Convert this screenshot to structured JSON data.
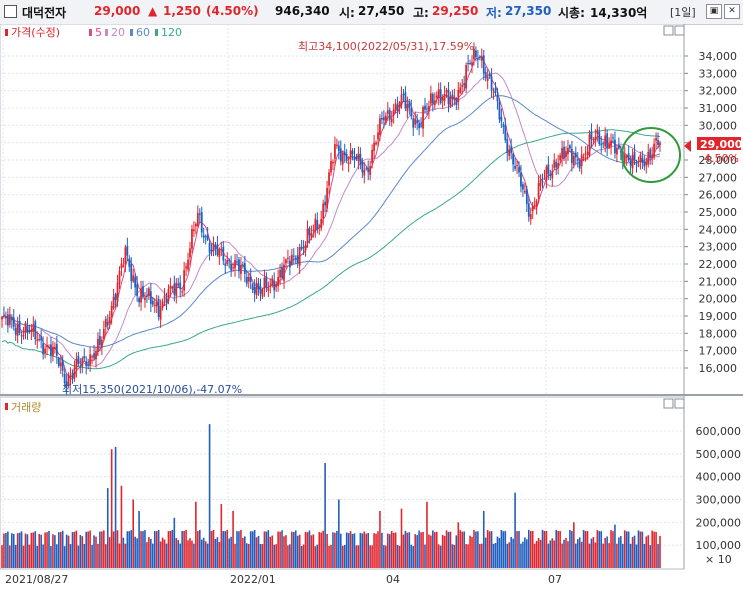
{
  "header": {
    "name": "대덕전자",
    "price": "29,000",
    "change_arrow": "▲",
    "change": "1,250",
    "change_pct": "(4.50%)",
    "volume": "946,340",
    "open_label": "시:",
    "open": "27,450",
    "high_label": "고:",
    "high": "29,250",
    "low_label": "저:",
    "low": "27,350",
    "mcap_label": "시총:",
    "mcap": "14,330억",
    "period": "[1일]"
  },
  "colors": {
    "up": "#e0262c",
    "down": "#1f5fbf",
    "ma5": "#d84b8a",
    "ma20": "#c58ac8",
    "ma60": "#5a8ac8",
    "ma120": "#39a88c",
    "grid": "#dfe4ee",
    "circle": "#2e9a3c"
  },
  "price_legend": {
    "title": "가격(수정)",
    "ma5": "5",
    "ma20": "20",
    "ma60": "60",
    "ma120": "120"
  },
  "volume_legend": {
    "title": "거래량"
  },
  "annotations": {
    "high": "최고34,100(2022/05/31),17.59%",
    "low": "최저15,350(2021/10/06),-47.07%"
  },
  "last_price_tag": {
    "price": "29,000",
    "pct": "4.50%"
  },
  "volume_unit": "× 10",
  "icons": [
    "window-box-icon",
    "maximize-icon",
    "close-icon",
    "restore-icon",
    "up-arrow-icon",
    "price-pointer-icon"
  ],
  "chart_data": {
    "type": "candlestick",
    "ylim": [
      15000,
      35000
    ],
    "yticks": [
      "34,000",
      "33,000",
      "32,000",
      "31,000",
      "30,000",
      "29,000",
      "28,000",
      "27,000",
      "26,000",
      "25,000",
      "24,000",
      "23,000",
      "22,000",
      "21,000",
      "20,000",
      "19,000",
      "18,000",
      "17,000",
      "16,000"
    ],
    "xticks": [
      "2021/08/27",
      "2022/01",
      "04",
      "07"
    ],
    "volume_yticks": [
      "600,000",
      "500,000",
      "400,000",
      "300,000",
      "200,000",
      "100,000"
    ],
    "volume_ylim": [
      0,
      650000
    ],
    "price_series": [
      {
        "date": "2021/08/27",
        "close": 18800
      },
      {
        "date": "2021/10/06",
        "close": 15350
      },
      {
        "date": "2021/11",
        "close": 21500
      },
      {
        "date": "2021/12",
        "close": 20200
      },
      {
        "date": "2022/01",
        "close": 24800
      },
      {
        "date": "2022/02",
        "close": 21600
      },
      {
        "date": "2022/03",
        "close": 23000
      },
      {
        "date": "2022/04",
        "close": 28500
      },
      {
        "date": "2022/05/31",
        "close": 34100
      },
      {
        "date": "2022/06",
        "close": 28000
      },
      {
        "date": "2022/07",
        "close": 27500
      },
      {
        "date": "2022/08",
        "close": 29000
      }
    ],
    "moving_averages": [
      "5",
      "20",
      "60",
      "120"
    ],
    "last_close": 29000
  }
}
